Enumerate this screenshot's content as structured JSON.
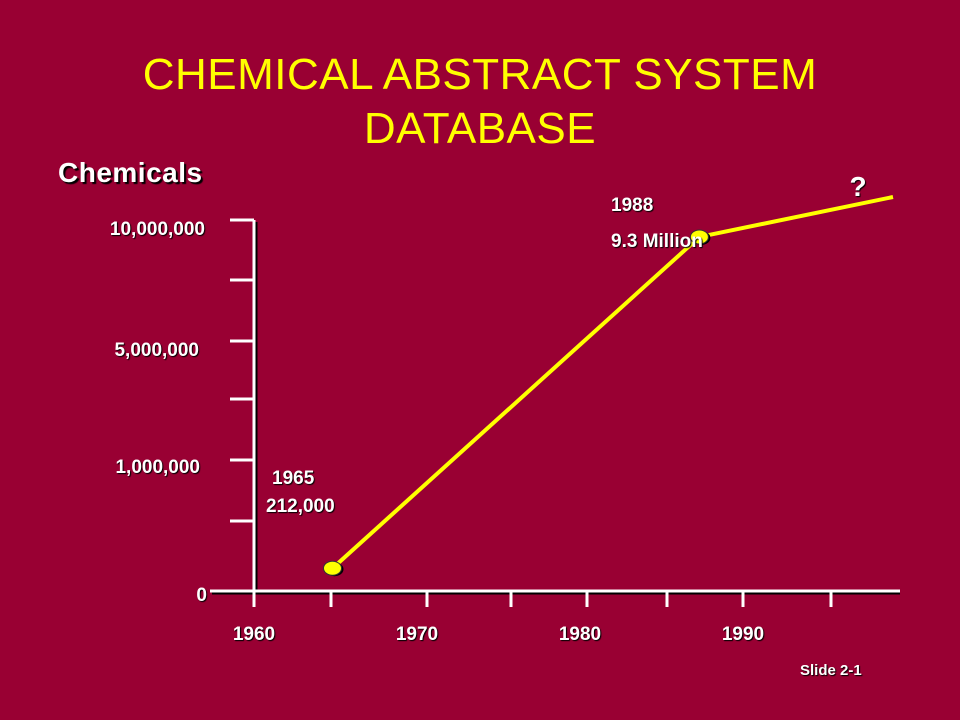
{
  "title_lines": [
    "CHEMICAL ABSTRACT SYSTEM",
    "DATABASE"
  ],
  "slide_number": "Slide 2-1",
  "colors": {
    "background": "#990033",
    "title": "#FFFF00",
    "line": "#FFFF00",
    "text": "#FFFFFF"
  },
  "chart_data": {
    "type": "line",
    "title": "CHEMICAL ABSTRACT SYSTEM DATABASE",
    "ylabel": "Chemicals",
    "xlabel": "",
    "x_ticks": [
      "1960",
      "1970",
      "1980",
      "1990"
    ],
    "y_ticks": [
      "0",
      "1,000,000",
      "5,000,000",
      "10,000,000"
    ],
    "series": [
      {
        "points": [
          {
            "x": 1965,
            "y": 212000
          },
          {
            "x": 1988,
            "y": 9300000
          },
          {
            "x": 1993,
            "y": null
          }
        ]
      }
    ],
    "annotations": [
      {
        "year": "1965",
        "value": "212,000"
      },
      {
        "year": "1988",
        "value": "9.3 Million"
      },
      {
        "text": "?"
      }
    ]
  }
}
